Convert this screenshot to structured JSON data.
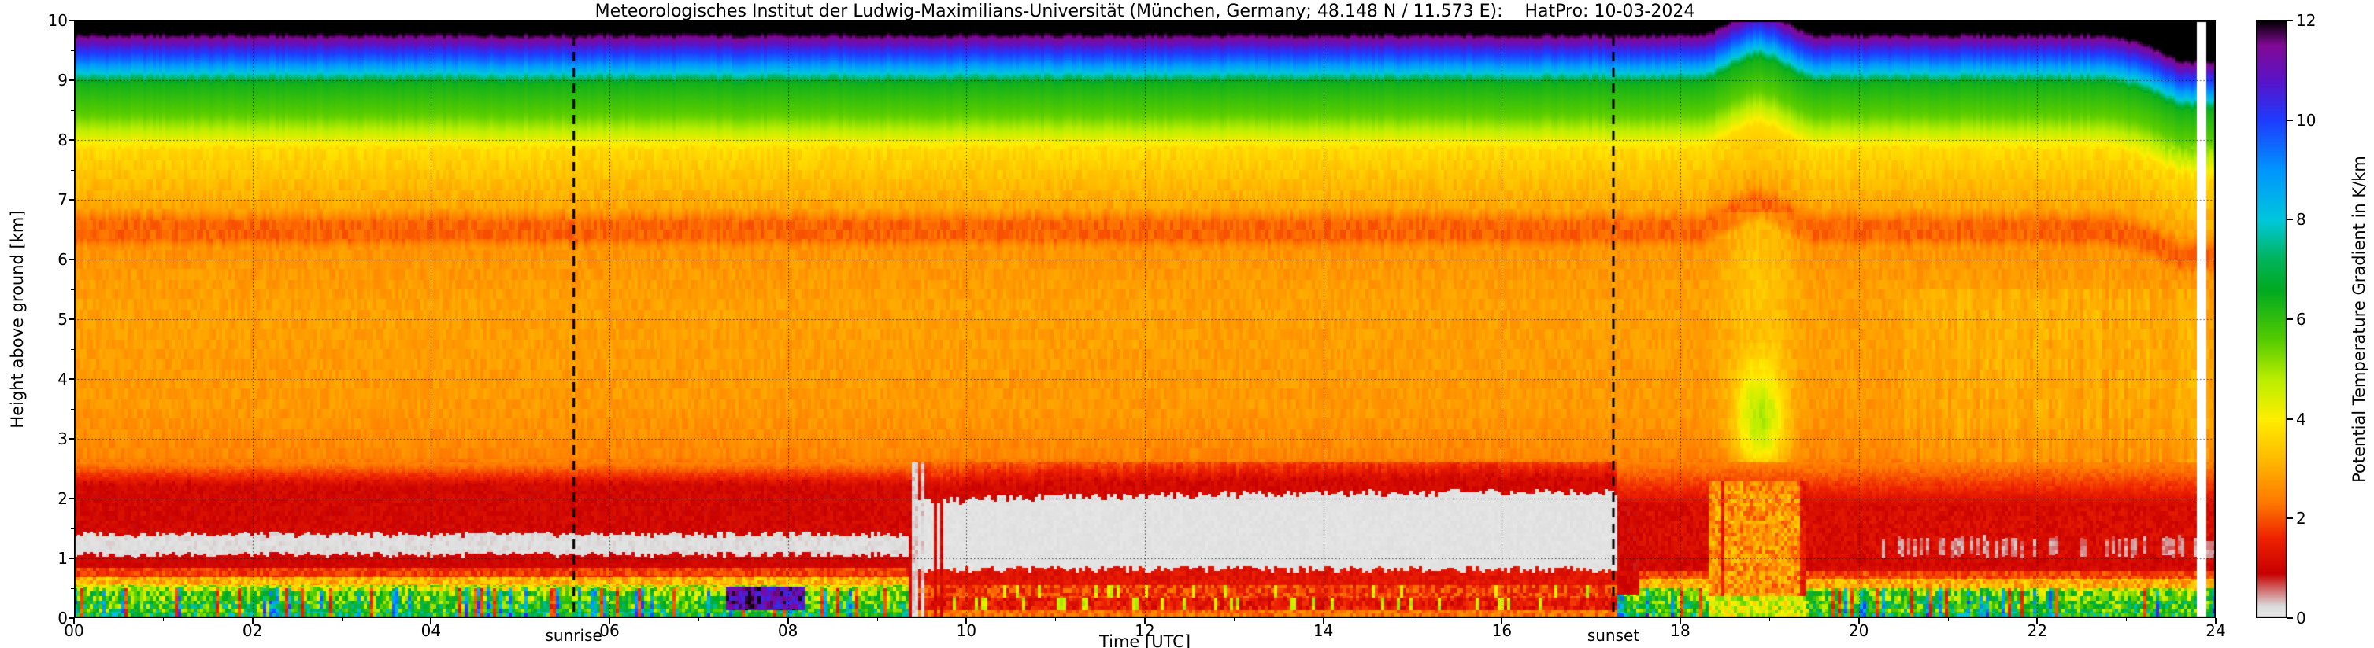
{
  "title": "Meteorologisches Institut der Ludwig-Maximilians-Universität (München, Germany; 48.148 N / 11.573 E):    HatPro: 10-03-2024",
  "axes": {
    "x_label": "Time [UTC]",
    "y_label": "Height above ground [km]",
    "x_ticks": [
      "00",
      "02",
      "04",
      "06",
      "08",
      "10",
      "12",
      "14",
      "16",
      "18",
      "20",
      "22",
      "24"
    ],
    "x_tick_values": [
      0,
      2,
      4,
      6,
      8,
      10,
      12,
      14,
      16,
      18,
      20,
      22,
      24
    ],
    "y_ticks": [
      "0",
      "1",
      "2",
      "3",
      "4",
      "5",
      "6",
      "7",
      "8",
      "9",
      "10"
    ],
    "y_tick_values": [
      0,
      1,
      2,
      3,
      4,
      5,
      6,
      7,
      8,
      9,
      10
    ]
  },
  "colorbar": {
    "label": "Potential Temperature Gradient in K/km",
    "tick_labels": [
      "0",
      "2",
      "4",
      "6",
      "8",
      "10",
      "12"
    ],
    "tick_values": [
      0,
      2,
      4,
      6,
      8,
      10,
      12
    ],
    "min": 0,
    "max": 12
  },
  "chart_data": {
    "type": "heatmap",
    "instrument": "HatPro",
    "date": "10-03-2024",
    "x_unit": "hours UTC",
    "x_range": [
      0,
      24
    ],
    "y_unit": "km above ground",
    "y_range": [
      0,
      10
    ],
    "value_unit": "K/km",
    "value_range": [
      0,
      12
    ],
    "grid": "dotted, every 2 h and every 1 km",
    "annotations": [
      {
        "type": "vline",
        "label": "sunrise",
        "x": 5.6,
        "style": "dashed"
      },
      {
        "type": "vline",
        "label": "sunset",
        "x": 17.25,
        "style": "dashed"
      }
    ],
    "data_gaps": [
      [
        23.8,
        23.88
      ]
    ],
    "colormap": [
      [
        0.0,
        "#e9e9e9"
      ],
      [
        0.25,
        "#dcdcdc"
      ],
      [
        0.9,
        "#c80000"
      ],
      [
        1.6,
        "#ee2200"
      ],
      [
        2.3,
        "#ff7700"
      ],
      [
        3.2,
        "#ffbb00"
      ],
      [
        4.0,
        "#ffee00"
      ],
      [
        4.8,
        "#bbee00"
      ],
      [
        5.6,
        "#55cc00"
      ],
      [
        6.6,
        "#00aa22"
      ],
      [
        7.2,
        "#00b45a"
      ],
      [
        8.0,
        "#00c8dc"
      ],
      [
        9.0,
        "#0096ff"
      ],
      [
        10.0,
        "#1e3cff"
      ],
      [
        10.8,
        "#5a14c8"
      ],
      [
        11.5,
        "#820a96"
      ],
      [
        12.0,
        "#000000"
      ]
    ],
    "base_profile": [
      [
        0.0,
        4.5
      ],
      [
        0.05,
        5.8
      ],
      [
        0.12,
        6.6
      ],
      [
        0.3,
        5.2
      ],
      [
        0.45,
        4.6
      ],
      [
        0.6,
        3.2
      ],
      [
        0.72,
        2.0
      ],
      [
        0.84,
        1.1
      ],
      [
        1.02,
        0.9
      ],
      [
        1.12,
        0.2
      ],
      [
        1.36,
        0.2
      ],
      [
        1.52,
        0.9
      ],
      [
        2.18,
        1.0
      ],
      [
        2.45,
        2.1
      ],
      [
        2.7,
        2.5
      ],
      [
        3.5,
        2.75
      ],
      [
        5.2,
        2.85
      ],
      [
        6.2,
        2.7
      ],
      [
        6.35,
        2.15
      ],
      [
        6.62,
        2.15
      ],
      [
        6.85,
        2.9
      ],
      [
        7.3,
        3.25
      ],
      [
        7.85,
        3.7
      ],
      [
        8.1,
        4.6
      ],
      [
        8.4,
        5.5
      ],
      [
        8.95,
        6.4
      ],
      [
        9.1,
        7.9
      ],
      [
        9.3,
        9.3
      ],
      [
        9.5,
        10.3
      ],
      [
        9.65,
        11.2
      ],
      [
        9.78,
        12.0
      ],
      [
        10.45,
        12.0
      ]
    ],
    "regimes": {
      "night": {
        "t": [
          0,
          9.35
        ],
        "stable_layer": {
          "upper_red_band_km": [
            1.5,
            2.2
          ],
          "near_neutral_pale_band_km": [
            1.08,
            1.4
          ],
          "lower_red_band_km": [
            0.84,
            1.06
          ],
          "surface_green_layer_km": [
            0,
            0.56
          ]
        }
      },
      "transition_morning": {
        "t": [
          9.35,
          9.8
        ]
      },
      "day": {
        "t": [
          9.35,
          17.3
        ],
        "mixed_layer": {
          "z_km": [
            0.85,
            2.1
          ],
          "value": 0.1
        }
      },
      "evening": {
        "t": [
          17.3,
          24
        ]
      },
      "plume": {
        "t": [
          18.2,
          19.55
        ],
        "band_lift_km": 0.4,
        "green_patch": {
          "t": [
            18.45,
            19.35
          ],
          "z_km": [
            2.2,
            4.6
          ]
        }
      },
      "upper_band_descent": {
        "t_start": 22.6,
        "drop_km": 0.45
      },
      "surface_black_patch": {
        "t": [
          7.3,
          8.2
        ],
        "z_km": [
          0.12,
          0.52
        ]
      }
    }
  }
}
